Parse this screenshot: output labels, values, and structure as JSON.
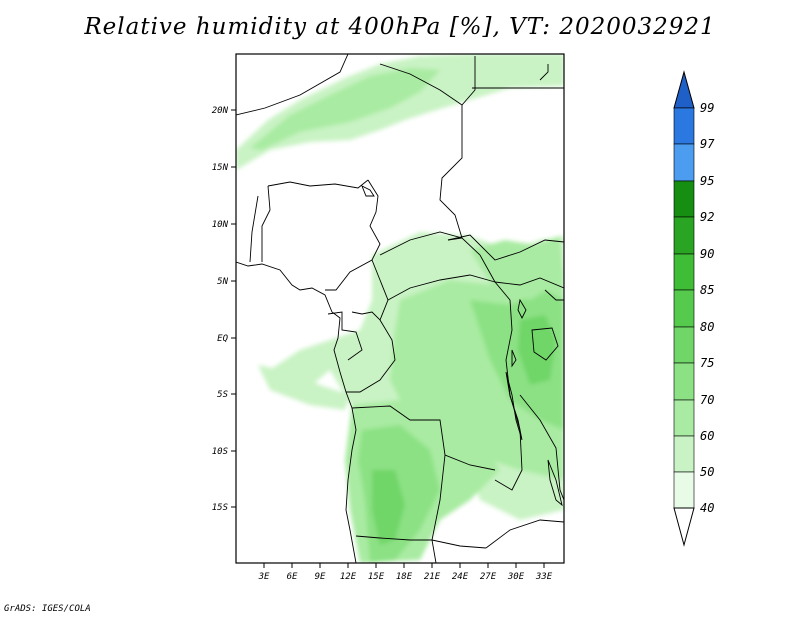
{
  "title": "Relative humidity at 400hPa [%], VT: 2020032921",
  "credit": "GrADS: IGES/COLA",
  "map": {
    "lon_range": [
      0,
      35
    ],
    "lat_range": [
      -20,
      25
    ],
    "x_ticks": [
      "3E",
      "6E",
      "9E",
      "12E",
      "15E",
      "18E",
      "21E",
      "24E",
      "27E",
      "30E",
      "33E"
    ],
    "y_ticks": [
      "20N",
      "15N",
      "10N",
      "5N",
      "EQ",
      "5S",
      "10S",
      "15S"
    ]
  },
  "colorbar": {
    "levels": [
      "40",
      "50",
      "60",
      "70",
      "75",
      "80",
      "85",
      "90",
      "92",
      "95",
      "97",
      "99"
    ],
    "colors": [
      "#e8fbe6",
      "#c9f3c4",
      "#a9eba2",
      "#8ce184",
      "#6fd667",
      "#56ca4d",
      "#3fbd37",
      "#2aa523",
      "#168e12",
      "#4c9cf0",
      "#2b79e0",
      "#1f5fc8"
    ]
  }
}
